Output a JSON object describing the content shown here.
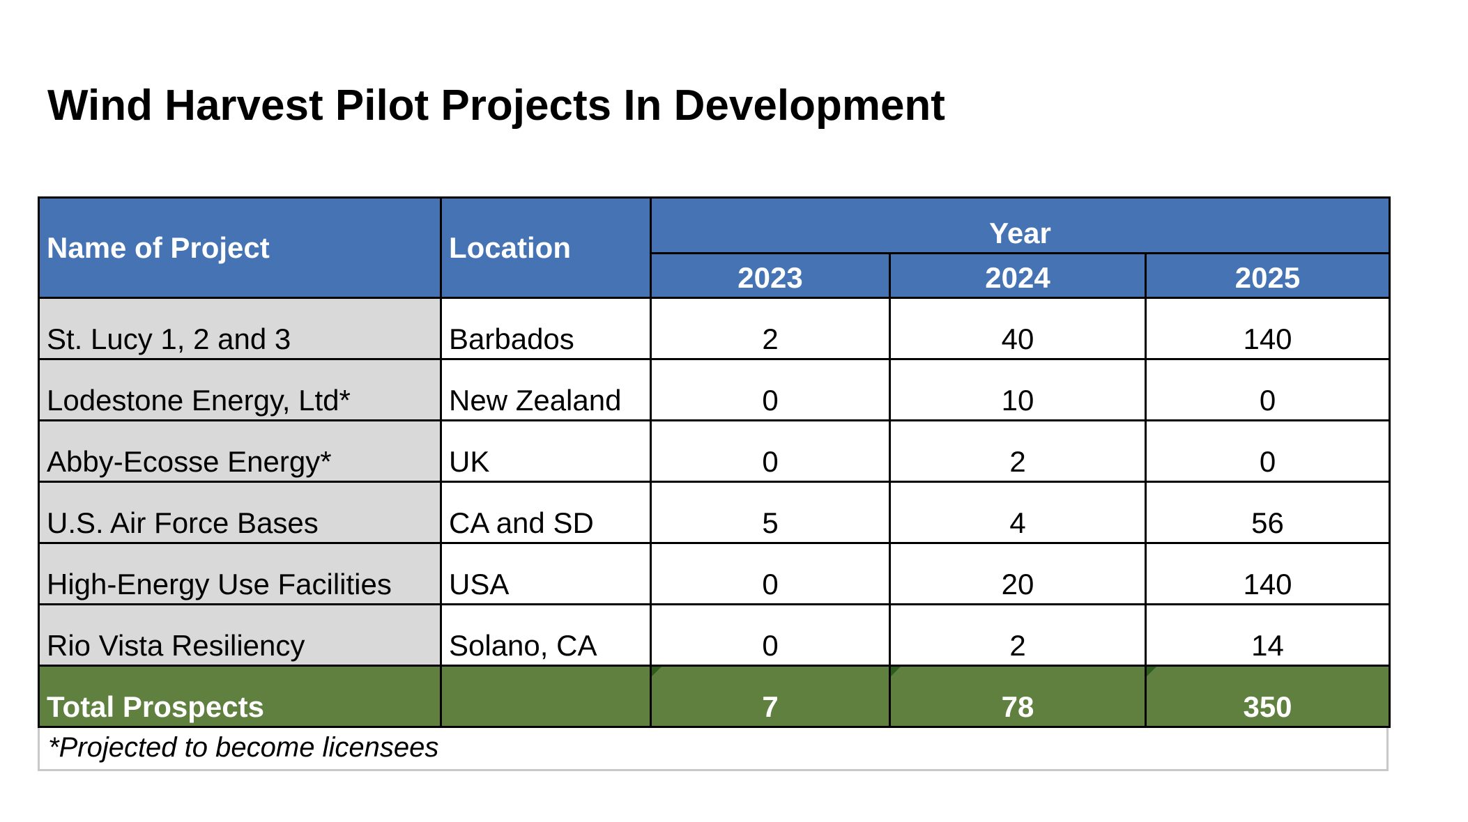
{
  "title": "Wind Harvest Pilot Projects In Development",
  "table": {
    "headers": {
      "name": "Name of Project",
      "location": "Location",
      "year_group": "Year",
      "years": [
        "2023",
        "2024",
        "2025"
      ]
    },
    "rows": [
      {
        "name": "St. Lucy 1, 2 and 3",
        "location": "Barbados",
        "values": [
          "2",
          "40",
          "140"
        ]
      },
      {
        "name": "Lodestone Energy, Ltd*",
        "location": "New Zealand",
        "values": [
          "0",
          "10",
          "0"
        ]
      },
      {
        "name": "Abby-Ecosse Energy*",
        "location": "UK",
        "values": [
          "0",
          "2",
          "0"
        ]
      },
      {
        "name": "U.S. Air Force Bases",
        "location": "CA and SD",
        "values": [
          "5",
          "4",
          "56"
        ]
      },
      {
        "name": "High-Energy Use Facilities",
        "location": "USA",
        "values": [
          "0",
          "20",
          "140"
        ]
      },
      {
        "name": "Rio Vista Resiliency",
        "location": "Solano, CA",
        "values": [
          "0",
          "2",
          "14"
        ]
      }
    ],
    "total": {
      "label": "Total Prospects",
      "location": "",
      "values": [
        "7",
        "78",
        "350"
      ]
    }
  },
  "footnote": "*Projected to become licensees",
  "colors": {
    "header_bg": "#4573b3",
    "name_col_bg": "#d9d9d9",
    "total_bg": "#608040",
    "header_text": "#ffffff"
  }
}
